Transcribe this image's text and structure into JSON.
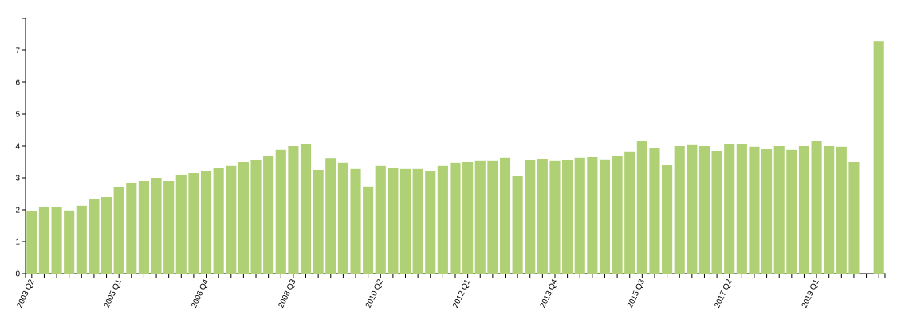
{
  "chart_data": {
    "type": "bar",
    "categories": [
      "2003 Q2",
      null,
      null,
      null,
      null,
      null,
      null,
      "2005 Q1",
      null,
      null,
      null,
      null,
      null,
      null,
      "2006 Q4",
      null,
      null,
      null,
      null,
      null,
      null,
      "2008 Q3",
      null,
      null,
      null,
      null,
      null,
      null,
      "2010 Q2",
      null,
      null,
      null,
      null,
      null,
      null,
      "2012 Q1",
      null,
      null,
      null,
      null,
      null,
      null,
      "2013 Q4",
      null,
      null,
      null,
      null,
      null,
      null,
      "2015 Q3",
      null,
      null,
      null,
      null,
      null,
      null,
      "2017 Q2",
      null,
      null,
      null,
      null,
      null,
      null,
      "2019 Q1",
      null,
      null,
      null,
      null,
      null
    ],
    "values": [
      1.95,
      2.08,
      2.1,
      1.98,
      2.13,
      2.33,
      2.4,
      2.7,
      2.83,
      2.9,
      3.0,
      2.9,
      3.08,
      3.15,
      3.2,
      3.3,
      3.38,
      3.5,
      3.55,
      3.68,
      3.88,
      4.0,
      4.05,
      3.25,
      3.62,
      3.48,
      3.28,
      2.73,
      3.38,
      3.3,
      3.28,
      3.28,
      3.2,
      3.38,
      3.48,
      3.5,
      3.53,
      3.53,
      3.63,
      3.05,
      3.55,
      3.6,
      3.53,
      3.55,
      3.63,
      3.65,
      3.58,
      3.7,
      3.83,
      4.15,
      3.95,
      3.4,
      4.0,
      4.03,
      4.0,
      3.85,
      4.05,
      4.05,
      3.98,
      3.9,
      4.0,
      3.88,
      4.0,
      4.15,
      4.0,
      3.98,
      3.5,
      null,
      7.27
    ],
    "color": "#afd074",
    "ylim": [
      0,
      8
    ],
    "yticks": [
      0,
      1,
      2,
      3,
      4,
      5,
      6,
      7
    ],
    "grid": false
  }
}
